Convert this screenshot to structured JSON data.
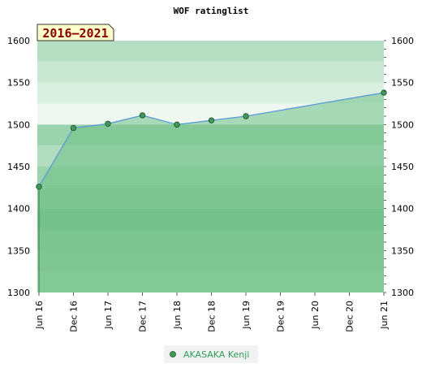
{
  "period_badge": "2016–2021",
  "chart_data": {
    "type": "area",
    "title": "WOF ratinglist",
    "categories": [
      "Jun 16",
      "Dec 16",
      "Jun 17",
      "Dec 17",
      "Jun 18",
      "Dec 18",
      "Jun 19",
      "Dec 19",
      "Jun 20",
      "Dec 20",
      "Jun 21"
    ],
    "ylim": [
      1300,
      1600
    ],
    "yticks": [
      1300,
      1350,
      1400,
      1450,
      1500,
      1550,
      1600
    ],
    "series": [
      {
        "name": "AKASAKA Kenji",
        "color": "#5b9bd5",
        "marker_color": "#3f9a5a",
        "points": [
          {
            "x": 0,
            "y": 1426
          },
          {
            "x": 1,
            "y": 1496
          },
          {
            "x": 2,
            "y": 1501
          },
          {
            "x": 3,
            "y": 1511
          },
          {
            "x": 4,
            "y": 1500
          },
          {
            "x": 5,
            "y": 1505
          },
          {
            "x": 6,
            "y": 1510
          },
          {
            "x": 10,
            "y": 1538
          }
        ]
      }
    ],
    "legend_position": "bottom-center",
    "grid": true
  },
  "colors": {
    "band_light": "#c8e6d2",
    "band_lighter": "#ddf0e3",
    "band_lightest": "#eef8f1",
    "band_mid": "#9bd3ac",
    "band_dark": "#7dc494",
    "badge_bg": "#ffffcc",
    "badge_border": "#333333"
  }
}
